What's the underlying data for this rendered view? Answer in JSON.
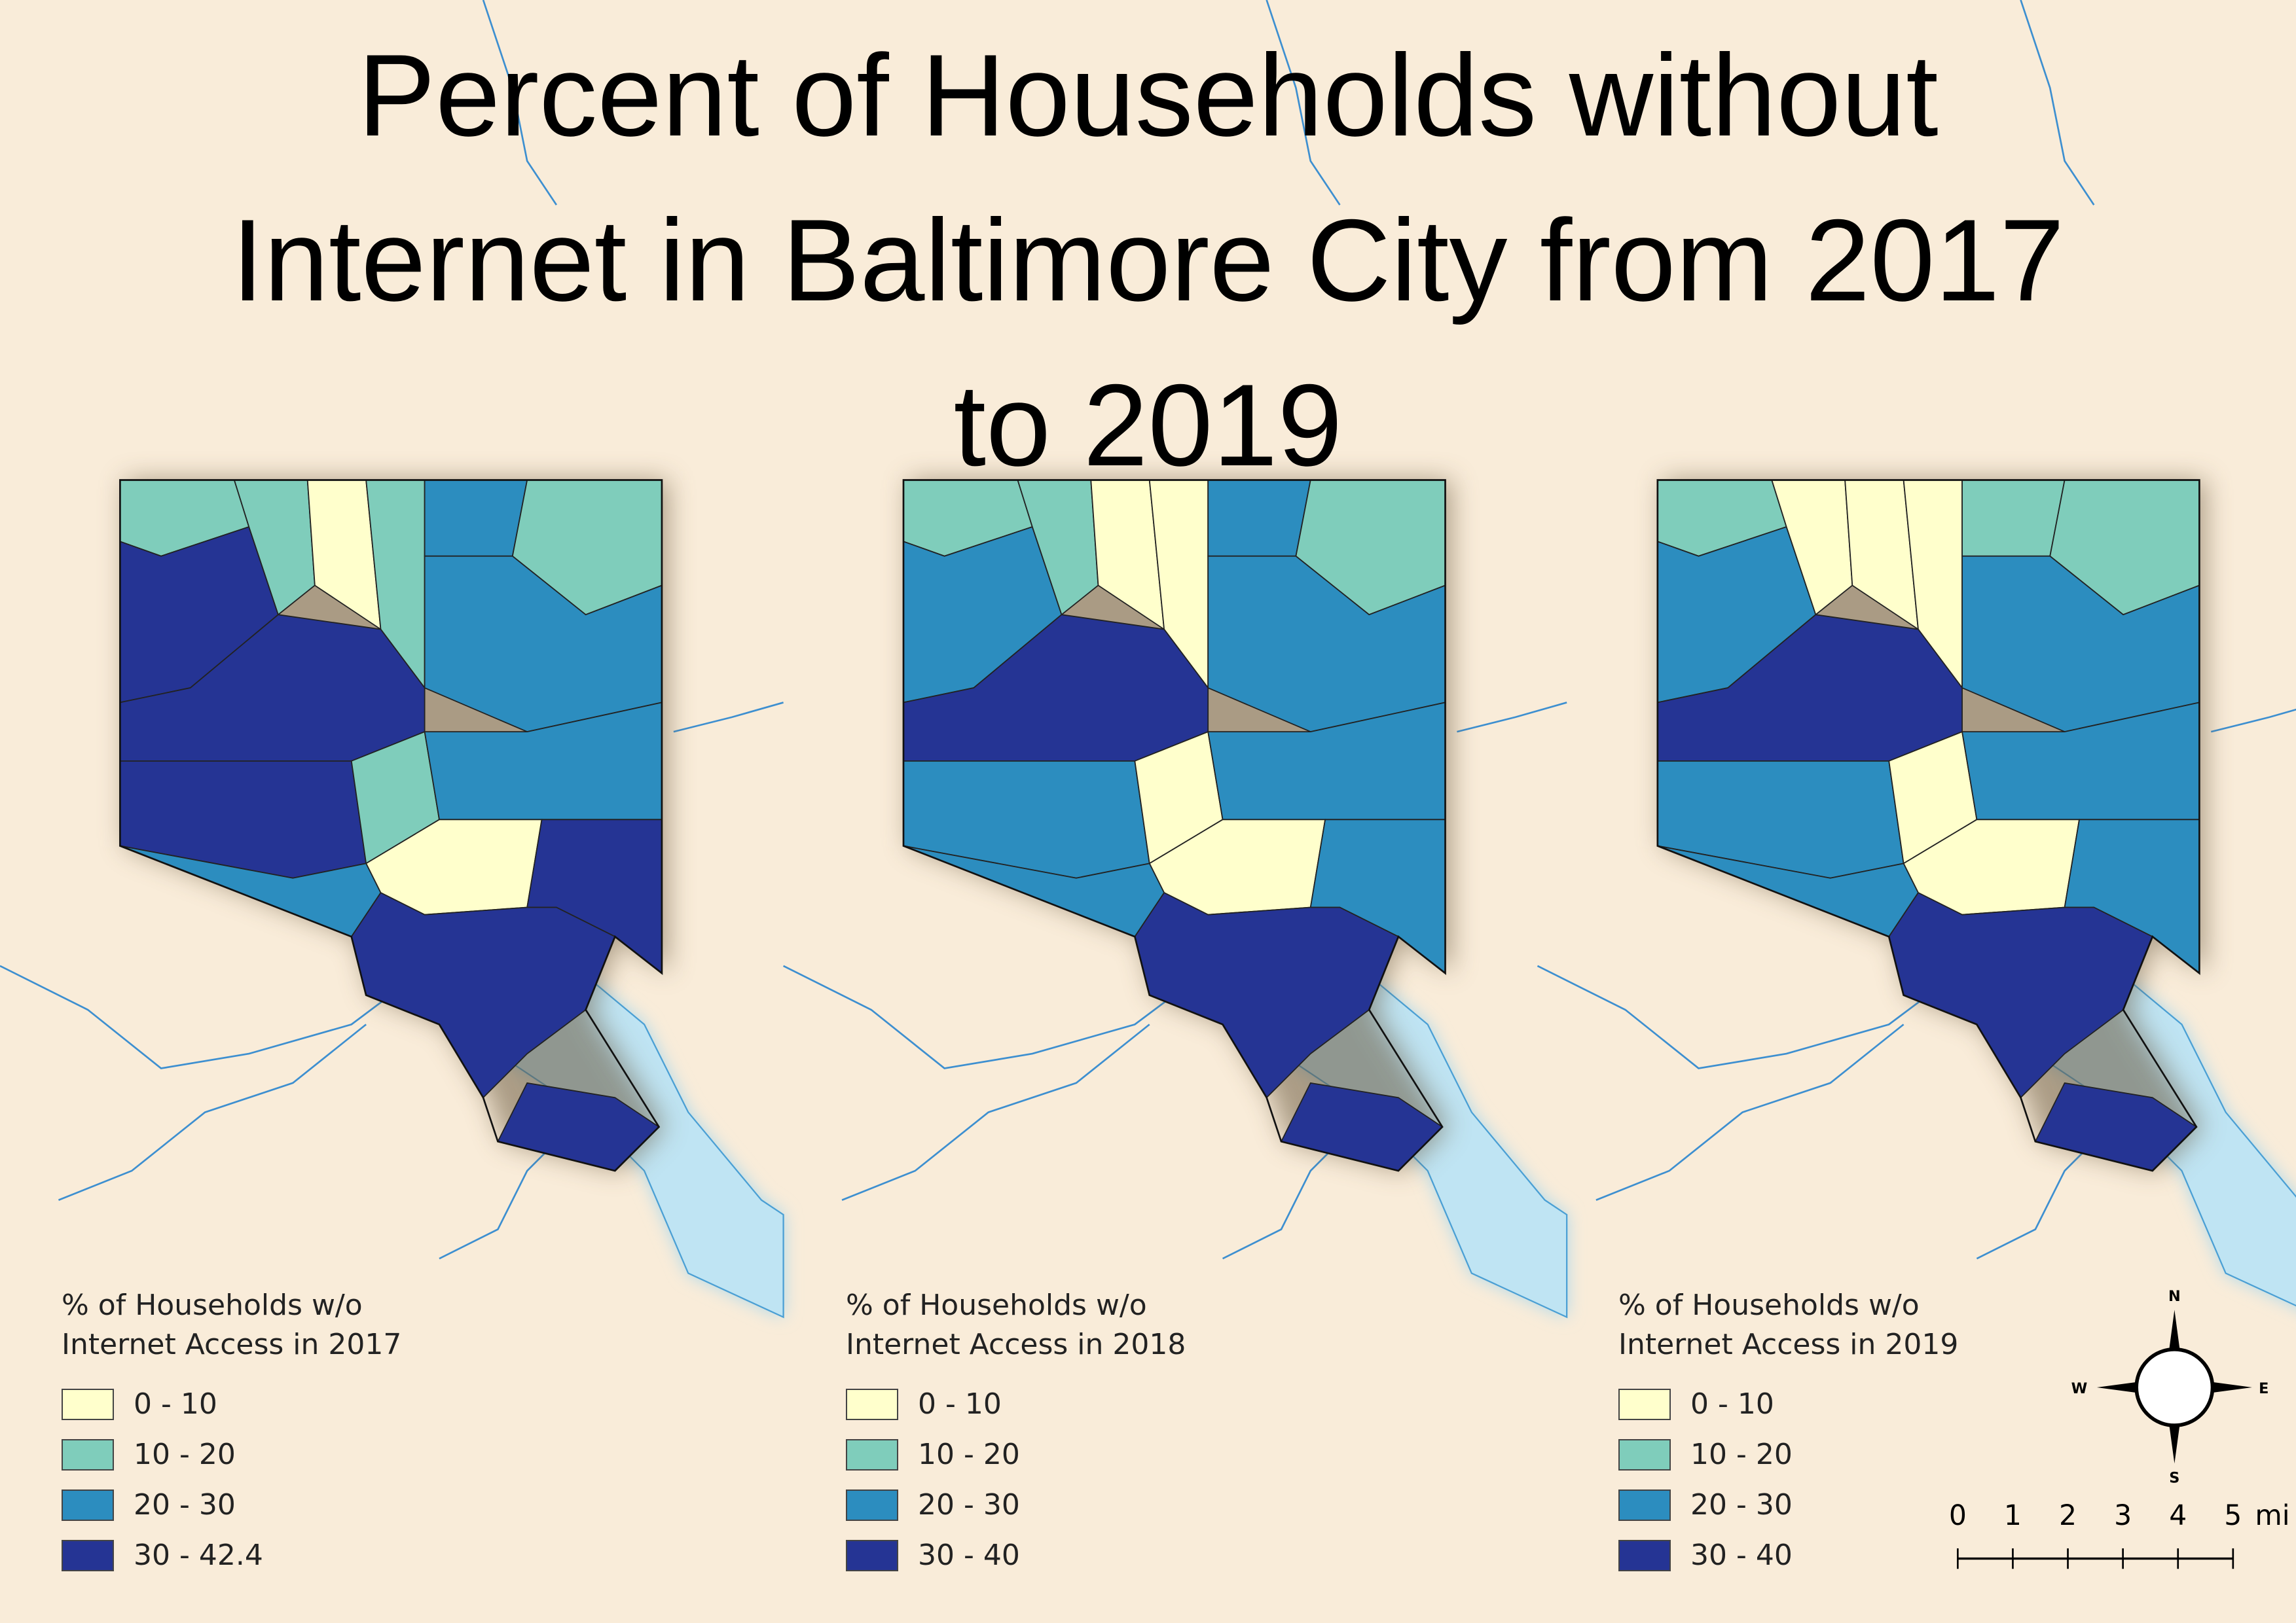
{
  "title": [
    "Percent of Households without",
    "Internet in Baltimore City from 2017",
    "to 2019"
  ],
  "class_colors": [
    "#ffffcc",
    "#7fcdbb",
    "#2c8dbf",
    "#253494"
  ],
  "panels": [
    {
      "legend_title": "% of Households w/o Internet Access in 2017",
      "classes": [
        "0 - 10",
        "10 - 20",
        "20 - 30",
        "30 - 42.4"
      ]
    },
    {
      "legend_title": "% of Households w/o Internet Access in 2018",
      "classes": [
        "0 - 10",
        "10 - 20",
        "20 - 30",
        "30 - 40"
      ]
    },
    {
      "legend_title": "% of Households w/o Internet Access in 2019",
      "classes": [
        "0 - 10",
        "10 - 20",
        "20 - 30",
        "30 - 40"
      ]
    }
  ],
  "compass": {
    "north": "N",
    "east": "E",
    "south": "S",
    "west": "W"
  },
  "scale_bar": {
    "labels": [
      "0",
      "1",
      "2",
      "3",
      "4",
      "5"
    ],
    "unit": "mi"
  }
}
